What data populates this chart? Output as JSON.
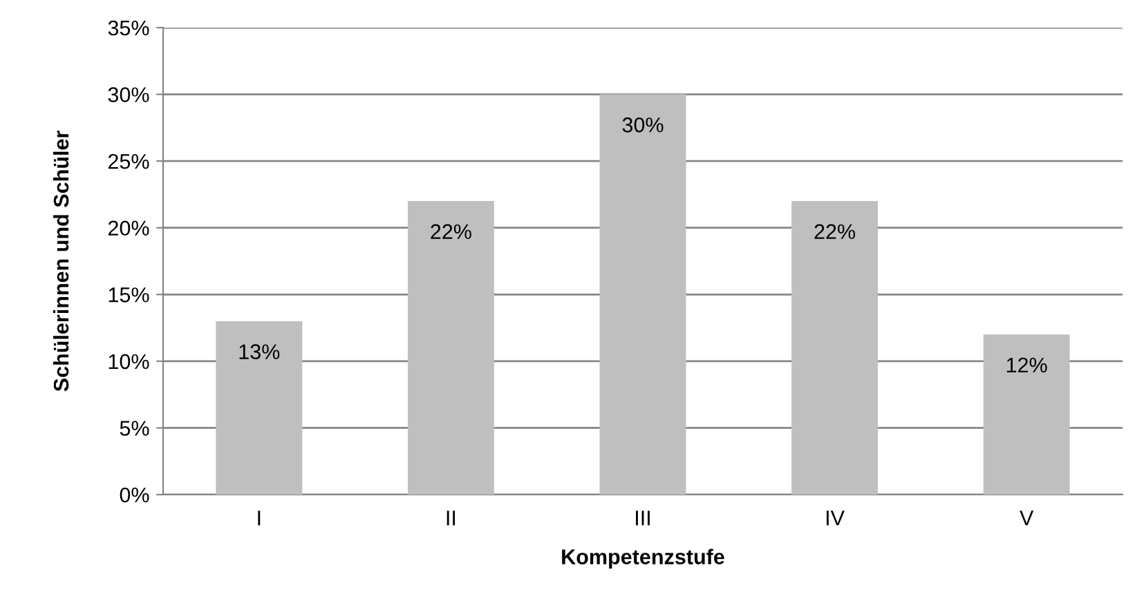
{
  "chart_data": {
    "type": "bar",
    "xlabel": "Kompetenzstufe",
    "ylabel": "Schülerinnen und Schüler",
    "categories": [
      "I",
      "II",
      "III",
      "IV",
      "V"
    ],
    "values": [
      13,
      22,
      30,
      22,
      12
    ],
    "color": "#bfbfbf",
    "value_labels": [
      "13%",
      "22%",
      "30%",
      "22%",
      "12%"
    ],
    "ylim": [
      0,
      35
    ],
    "yticks": [
      {
        "value": 0,
        "label": "0%"
      },
      {
        "value": 5,
        "label": "5%"
      },
      {
        "value": 10,
        "label": "10%"
      },
      {
        "value": 15,
        "label": "15%"
      },
      {
        "value": 20,
        "label": "20%"
      },
      {
        "value": 25,
        "label": "25%"
      },
      {
        "value": 30,
        "label": "30%"
      },
      {
        "value": 35,
        "label": "35%"
      }
    ],
    "grid": "y",
    "legend": false
  }
}
